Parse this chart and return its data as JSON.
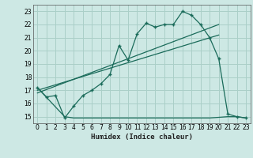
{
  "xlabel": "Humidex (Indice chaleur)",
  "bg_color": "#cde8e4",
  "grid_color": "#aacfc8",
  "line_color": "#1a6b5a",
  "xlim": [
    -0.5,
    23.5
  ],
  "ylim": [
    14.5,
    23.5
  ],
  "yticks": [
    15,
    16,
    17,
    18,
    19,
    20,
    21,
    22,
    23
  ],
  "xticks": [
    0,
    1,
    2,
    3,
    4,
    5,
    6,
    7,
    8,
    9,
    10,
    11,
    12,
    13,
    14,
    15,
    16,
    17,
    18,
    19,
    20,
    21,
    22,
    23
  ],
  "line1_x": [
    0,
    1,
    2,
    3,
    4,
    5,
    6,
    7,
    8,
    9,
    10,
    11,
    12,
    13,
    14,
    15,
    16,
    17,
    18,
    19,
    20,
    21,
    22,
    23
  ],
  "line1_y": [
    17.2,
    16.5,
    16.6,
    14.9,
    15.8,
    16.6,
    17.0,
    17.5,
    18.2,
    20.4,
    19.3,
    21.3,
    22.1,
    21.8,
    22.0,
    22.0,
    23.0,
    22.7,
    22.0,
    21.0,
    19.4,
    15.2,
    15.0,
    14.9
  ],
  "line2_x": [
    0,
    3,
    4,
    15,
    19,
    21,
    22,
    23
  ],
  "line2_y": [
    17.2,
    15.0,
    14.9,
    14.9,
    14.9,
    15.0,
    15.0,
    14.9
  ],
  "line3_x": [
    0,
    20
  ],
  "line3_y": [
    16.8,
    22.0
  ],
  "line4_x": [
    0,
    20
  ],
  "line4_y": [
    17.0,
    21.2
  ]
}
